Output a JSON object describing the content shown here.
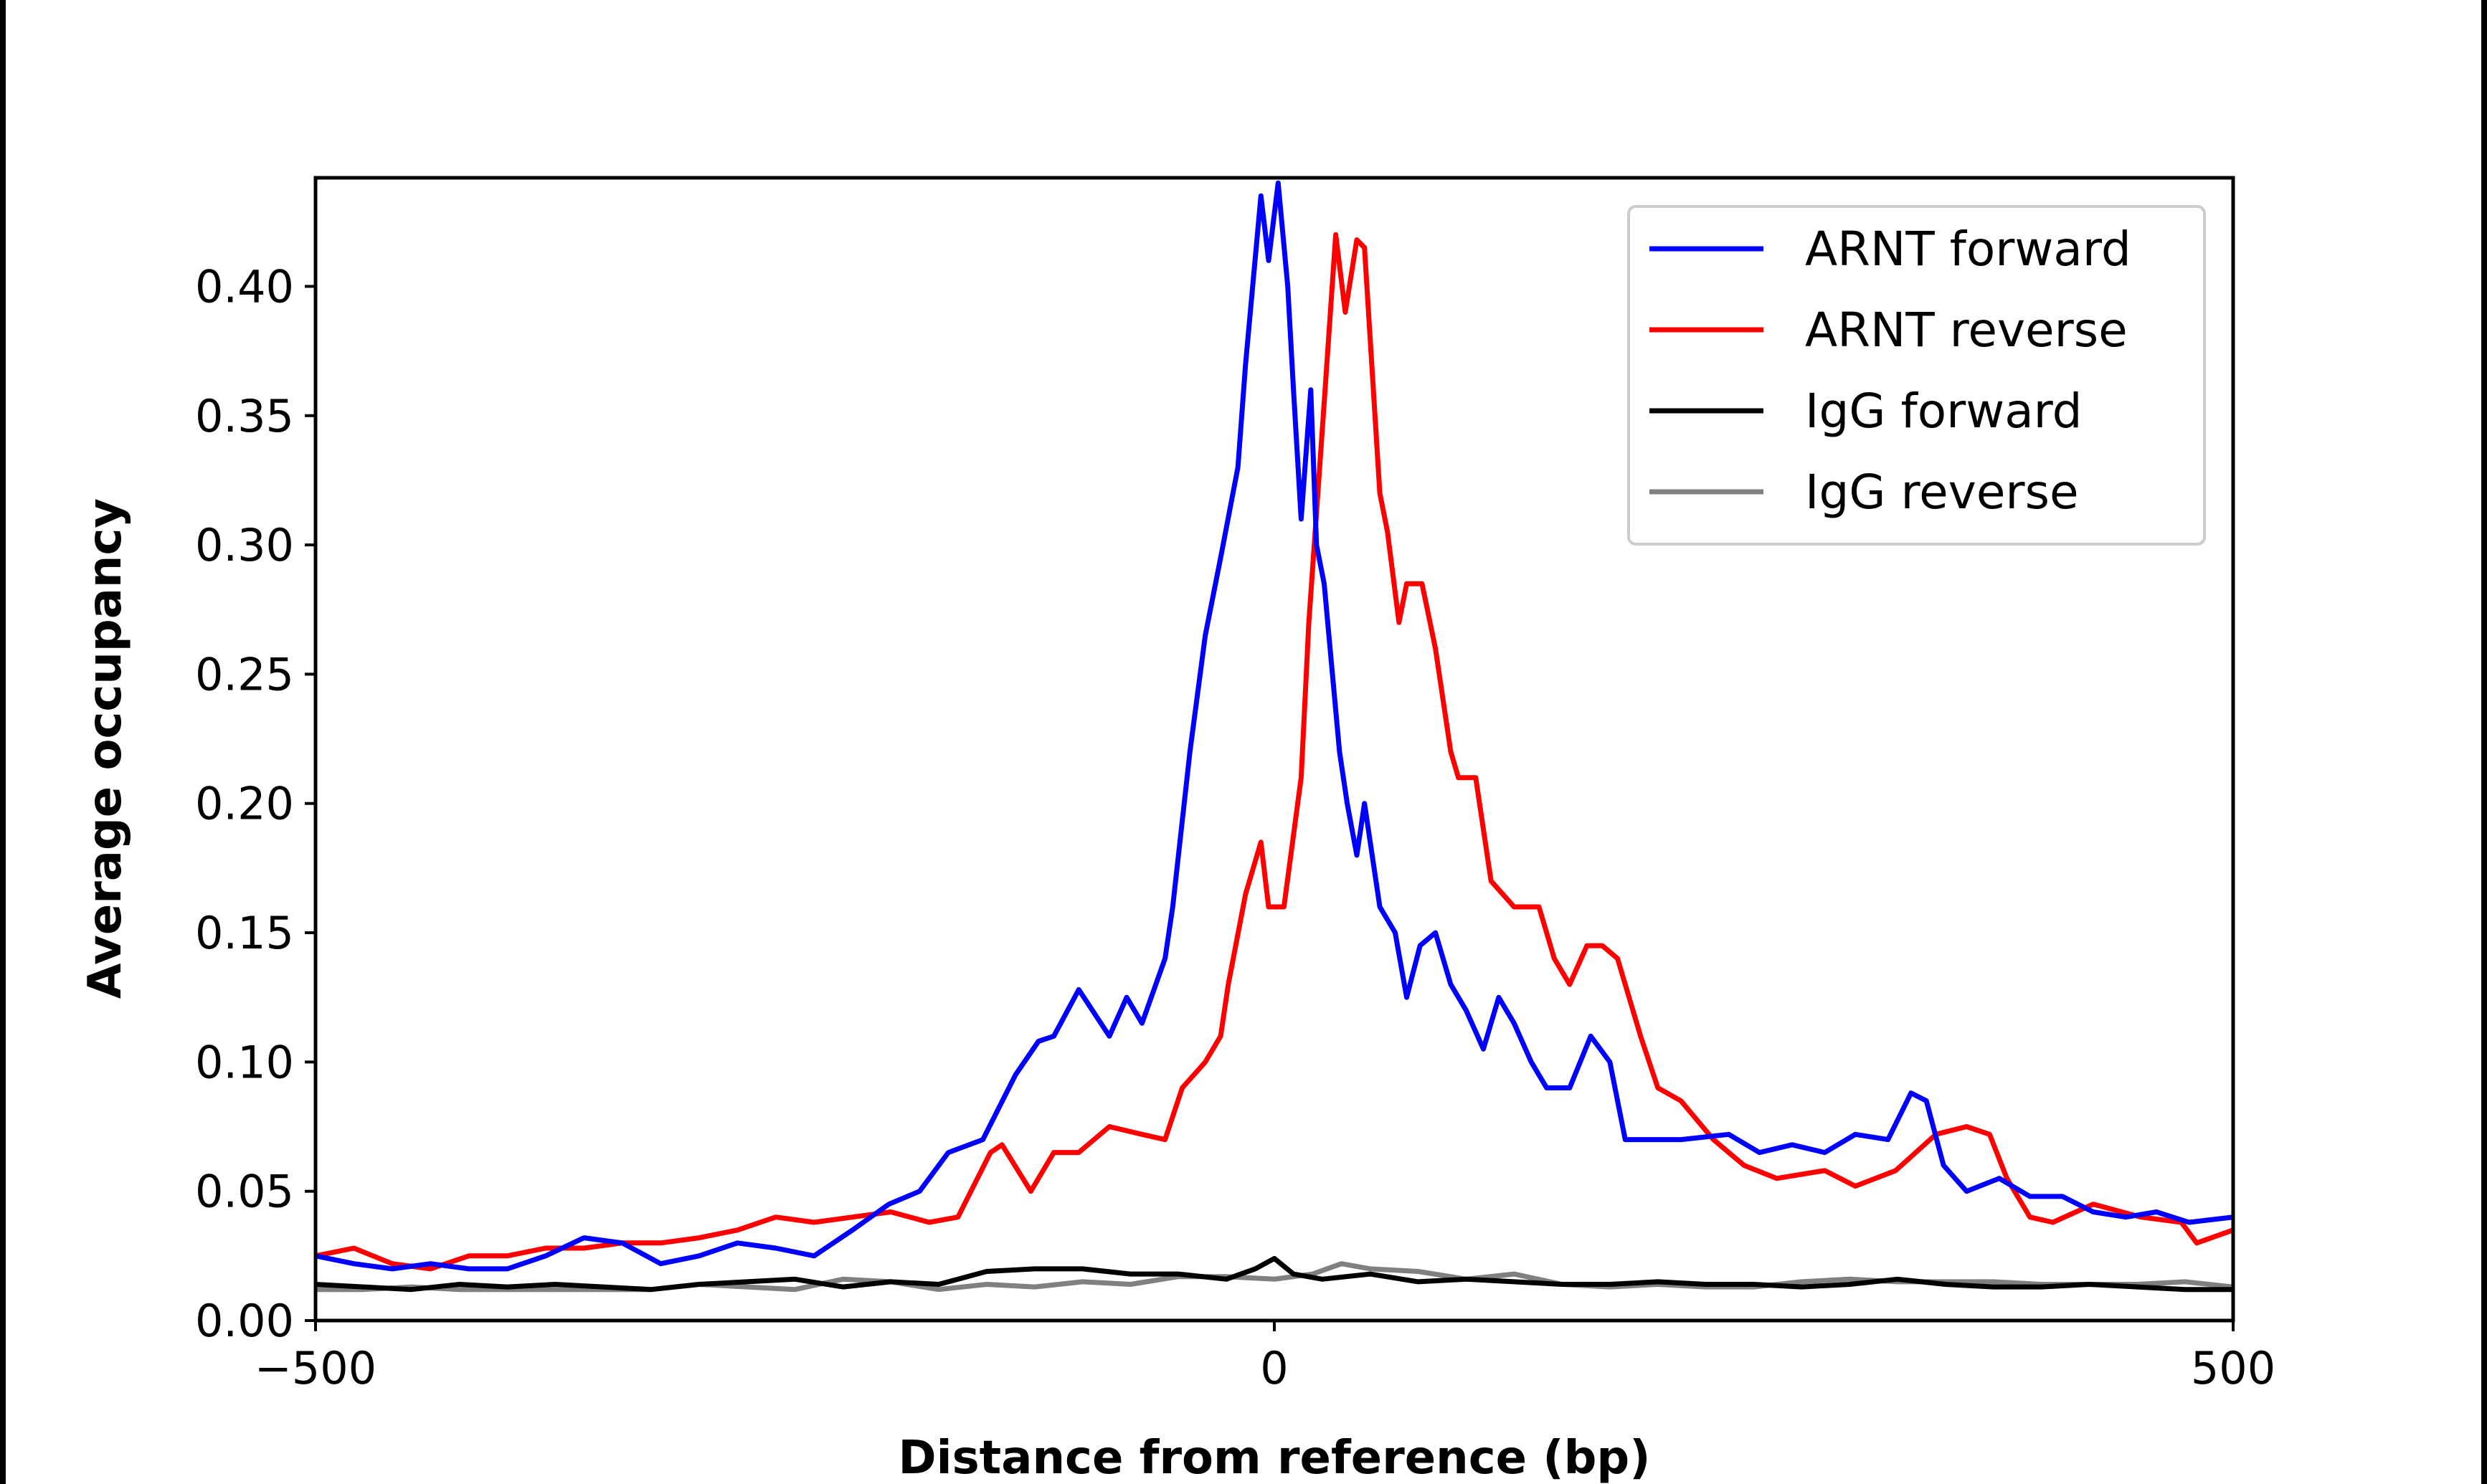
{
  "chart_data": {
    "type": "line",
    "title": "",
    "xlabel": "Distance from reference (bp)",
    "ylabel": "Average occupancy",
    "xlim": [
      -500,
      500
    ],
    "ylim": [
      0,
      0.442
    ],
    "xticks": [
      -500,
      0,
      500
    ],
    "xtick_labels": [
      "−500",
      "0",
      "500"
    ],
    "yticks": [
      0,
      0.05,
      0.1,
      0.15,
      0.2,
      0.25,
      0.3,
      0.35,
      0.4
    ],
    "ytick_labels": [
      "0.00",
      "0.05",
      "0.10",
      "0.15",
      "0.20",
      "0.25",
      "0.30",
      "0.35",
      "0.40"
    ],
    "grid": false,
    "legend_position": "top-right",
    "series": [
      {
        "name": "ARNT forward",
        "color": "#0000ff",
        "x": [
          -500,
          -480,
          -460,
          -440,
          -420,
          -400,
          -380,
          -360,
          -340,
          -320,
          -300,
          -280,
          -260,
          -240,
          -220,
          -201,
          -185,
          -170,
          -152,
          -135,
          -123,
          -115,
          -102,
          -86,
          -77,
          -69,
          -57,
          -53,
          -44,
          -36,
          -28,
          -19,
          -15,
          -7,
          -3,
          2,
          7,
          10,
          14,
          19,
          22,
          26,
          34,
          38,
          43,
          47,
          55,
          63,
          69,
          76,
          84,
          92,
          100,
          109,
          117,
          125,
          134,
          142,
          154,
          165,
          175,
          183,
          196,
          212,
          237,
          253,
          270,
          287,
          303,
          320,
          332,
          340,
          349,
          361,
          378,
          394,
          411,
          427,
          444,
          460,
          477,
          500
        ],
        "y": [
          0.025,
          0.022,
          0.02,
          0.022,
          0.02,
          0.02,
          0.025,
          0.032,
          0.03,
          0.022,
          0.025,
          0.03,
          0.028,
          0.025,
          0.035,
          0.045,
          0.05,
          0.065,
          0.07,
          0.095,
          0.108,
          0.11,
          0.128,
          0.11,
          0.125,
          0.115,
          0.14,
          0.16,
          0.22,
          0.265,
          0.295,
          0.33,
          0.37,
          0.435,
          0.41,
          0.44,
          0.4,
          0.36,
          0.31,
          0.36,
          0.3,
          0.285,
          0.22,
          0.2,
          0.18,
          0.2,
          0.16,
          0.15,
          0.125,
          0.145,
          0.15,
          0.13,
          0.12,
          0.105,
          0.125,
          0.115,
          0.1,
          0.09,
          0.09,
          0.11,
          0.1,
          0.07,
          0.07,
          0.07,
          0.072,
          0.065,
          0.068,
          0.065,
          0.072,
          0.07,
          0.088,
          0.085,
          0.06,
          0.05,
          0.055,
          0.048,
          0.048,
          0.042,
          0.04,
          0.042,
          0.038,
          0.04
        ]
      },
      {
        "name": "ARNT reverse",
        "color": "#ff0000",
        "x": [
          -500,
          -480,
          -460,
          -440,
          -420,
          -400,
          -380,
          -360,
          -340,
          -320,
          -300,
          -280,
          -260,
          -240,
          -220,
          -200,
          -180,
          -165,
          -148,
          -142,
          -127,
          -115,
          -102,
          -86,
          -69,
          -57,
          -48,
          -36,
          -28,
          -24,
          -15,
          -7,
          -3,
          5,
          14,
          18,
          26,
          32,
          37,
          43,
          47,
          55,
          59,
          65,
          69,
          77,
          84,
          92,
          96,
          105,
          113,
          125,
          138,
          146,
          154,
          163,
          171,
          179,
          191,
          200,
          212,
          229,
          245,
          262,
          287,
          303,
          324,
          345,
          361,
          373,
          382,
          394,
          406,
          427,
          452,
          473,
          481,
          500
        ],
        "y": [
          0.025,
          0.028,
          0.022,
          0.02,
          0.025,
          0.025,
          0.028,
          0.028,
          0.03,
          0.03,
          0.032,
          0.035,
          0.04,
          0.038,
          0.04,
          0.042,
          0.038,
          0.04,
          0.065,
          0.068,
          0.05,
          0.065,
          0.065,
          0.075,
          0.072,
          0.07,
          0.09,
          0.1,
          0.11,
          0.13,
          0.165,
          0.185,
          0.16,
          0.16,
          0.21,
          0.27,
          0.355,
          0.42,
          0.39,
          0.418,
          0.415,
          0.32,
          0.305,
          0.27,
          0.285,
          0.285,
          0.26,
          0.22,
          0.21,
          0.21,
          0.17,
          0.16,
          0.16,
          0.14,
          0.13,
          0.145,
          0.145,
          0.14,
          0.11,
          0.09,
          0.085,
          0.07,
          0.06,
          0.055,
          0.058,
          0.052,
          0.058,
          0.072,
          0.075,
          0.072,
          0.055,
          0.04,
          0.038,
          0.045,
          0.04,
          0.038,
          0.03,
          0.035
        ]
      },
      {
        "name": "IgG forward",
        "color": "#000000",
        "x": [
          -500,
          -475,
          -450,
          -425,
          -400,
          -375,
          -350,
          -325,
          -300,
          -275,
          -250,
          -225,
          -200,
          -175,
          -150,
          -125,
          -100,
          -75,
          -50,
          -25,
          -10,
          0,
          10,
          25,
          50,
          75,
          100,
          125,
          150,
          175,
          200,
          225,
          250,
          275,
          300,
          325,
          350,
          375,
          400,
          425,
          450,
          475,
          500
        ],
        "y": [
          0.014,
          0.013,
          0.012,
          0.014,
          0.013,
          0.014,
          0.013,
          0.012,
          0.014,
          0.015,
          0.016,
          0.013,
          0.015,
          0.014,
          0.019,
          0.02,
          0.02,
          0.018,
          0.018,
          0.016,
          0.02,
          0.024,
          0.018,
          0.016,
          0.018,
          0.015,
          0.016,
          0.015,
          0.014,
          0.014,
          0.015,
          0.014,
          0.014,
          0.013,
          0.014,
          0.016,
          0.014,
          0.013,
          0.013,
          0.014,
          0.013,
          0.012,
          0.012
        ]
      },
      {
        "name": "IgG reverse",
        "color": "#808080",
        "x": [
          -500,
          -475,
          -450,
          -425,
          -400,
          -375,
          -350,
          -325,
          -300,
          -275,
          -250,
          -225,
          -200,
          -175,
          -150,
          -125,
          -100,
          -75,
          -50,
          -25,
          0,
          20,
          35,
          50,
          75,
          100,
          125,
          150,
          175,
          200,
          225,
          250,
          275,
          300,
          325,
          350,
          375,
          400,
          425,
          450,
          475,
          500
        ],
        "y": [
          0.012,
          0.012,
          0.013,
          0.012,
          0.012,
          0.012,
          0.012,
          0.012,
          0.014,
          0.013,
          0.012,
          0.016,
          0.015,
          0.012,
          0.014,
          0.013,
          0.015,
          0.014,
          0.017,
          0.017,
          0.016,
          0.018,
          0.022,
          0.02,
          0.019,
          0.016,
          0.018,
          0.014,
          0.013,
          0.014,
          0.013,
          0.013,
          0.015,
          0.016,
          0.015,
          0.015,
          0.015,
          0.014,
          0.014,
          0.014,
          0.015,
          0.013
        ]
      }
    ]
  }
}
